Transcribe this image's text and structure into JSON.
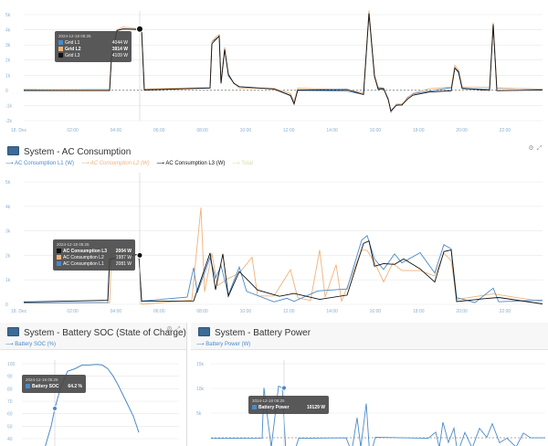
{
  "colors": {
    "l1": "#4a8ac9",
    "l2": "#f0b27a",
    "l3": "#111111",
    "total": "#cfe4a0",
    "grid": "#e8e8e8",
    "tick": "#8bb1cf"
  },
  "grid_chart": {
    "y_ticks": [
      "5k",
      "4k",
      "3k",
      "2k",
      "1k",
      "0",
      "-1k",
      "-2k"
    ],
    "x_ticks": [
      "18. Dec",
      "02:00",
      "04:00",
      "06:00",
      "08:00",
      "10:00",
      "12:00",
      "14:00",
      "16:00",
      "18:00",
      "20:00",
      "22:00"
    ],
    "tooltip": {
      "date": "2024-12-18 05:25",
      "rows": [
        {
          "label": "Grid L1",
          "value": "4044 W",
          "color": "#4a8ac9"
        },
        {
          "label": "Grid L2",
          "value": "3914 W",
          "color": "#f0b27a",
          "bold": true
        },
        {
          "label": "Grid L3",
          "value": "4109 W",
          "color": "#111111"
        }
      ]
    }
  },
  "ac_panel": {
    "title": "System - AC Consumption",
    "legend": [
      {
        "label": "AC Consumption L1 (W)",
        "color": "#4a8ac9"
      },
      {
        "label": "AC Consumption L2 (W)",
        "color": "#f0b27a",
        "italic": true
      },
      {
        "label": "AC Consumption L3 (W)",
        "color": "#111111"
      },
      {
        "label": "Total",
        "color": "#cfe4a0"
      }
    ],
    "y_ticks": [
      "5k",
      "4k",
      "3k",
      "2k",
      "1k",
      "0"
    ],
    "x_ticks": [
      "18. Dec",
      "02:00",
      "04:00",
      "06:00",
      "08:00",
      "10:00",
      "12:00",
      "14:00",
      "16:00",
      "18:00",
      "20:00",
      "22:00"
    ],
    "tooltip": {
      "date": "2024-12-18 05:25",
      "rows": [
        {
          "label": "AC Consumption L3",
          "value": "2004 W",
          "color": "#111111",
          "bold": true
        },
        {
          "label": "AC Consumption L2",
          "value": "1987 W",
          "color": "#f0b27a"
        },
        {
          "label": "AC Consumption L1",
          "value": "2081 W",
          "color": "#4a8ac9"
        }
      ]
    }
  },
  "soc_panel": {
    "title": "System - Battery SOC (State of Charge)",
    "legend": [
      {
        "label": "Battery SOC (%)",
        "color": "#4a8ac9"
      }
    ],
    "y_ticks": [
      "100",
      "90",
      "80",
      "70",
      "60",
      "50",
      "40"
    ],
    "tooltip": {
      "date": "2024-12-18 05:25",
      "rows": [
        {
          "label": "Battery SOC",
          "value": "64.2 %",
          "color": "#4a8ac9",
          "bold": true
        }
      ]
    }
  },
  "bp_panel": {
    "title": "System - Battery Power",
    "legend": [
      {
        "label": "Battery Power (W)",
        "color": "#4a8ac9"
      }
    ],
    "y_ticks": [
      "15k",
      "10k",
      "5k"
    ],
    "tooltip": {
      "date": "2024-12-18 05:25",
      "rows": [
        {
          "label": "Battery Power",
          "value": "10129 W",
          "color": "#4a8ac9",
          "bold": true
        }
      ]
    }
  }
}
